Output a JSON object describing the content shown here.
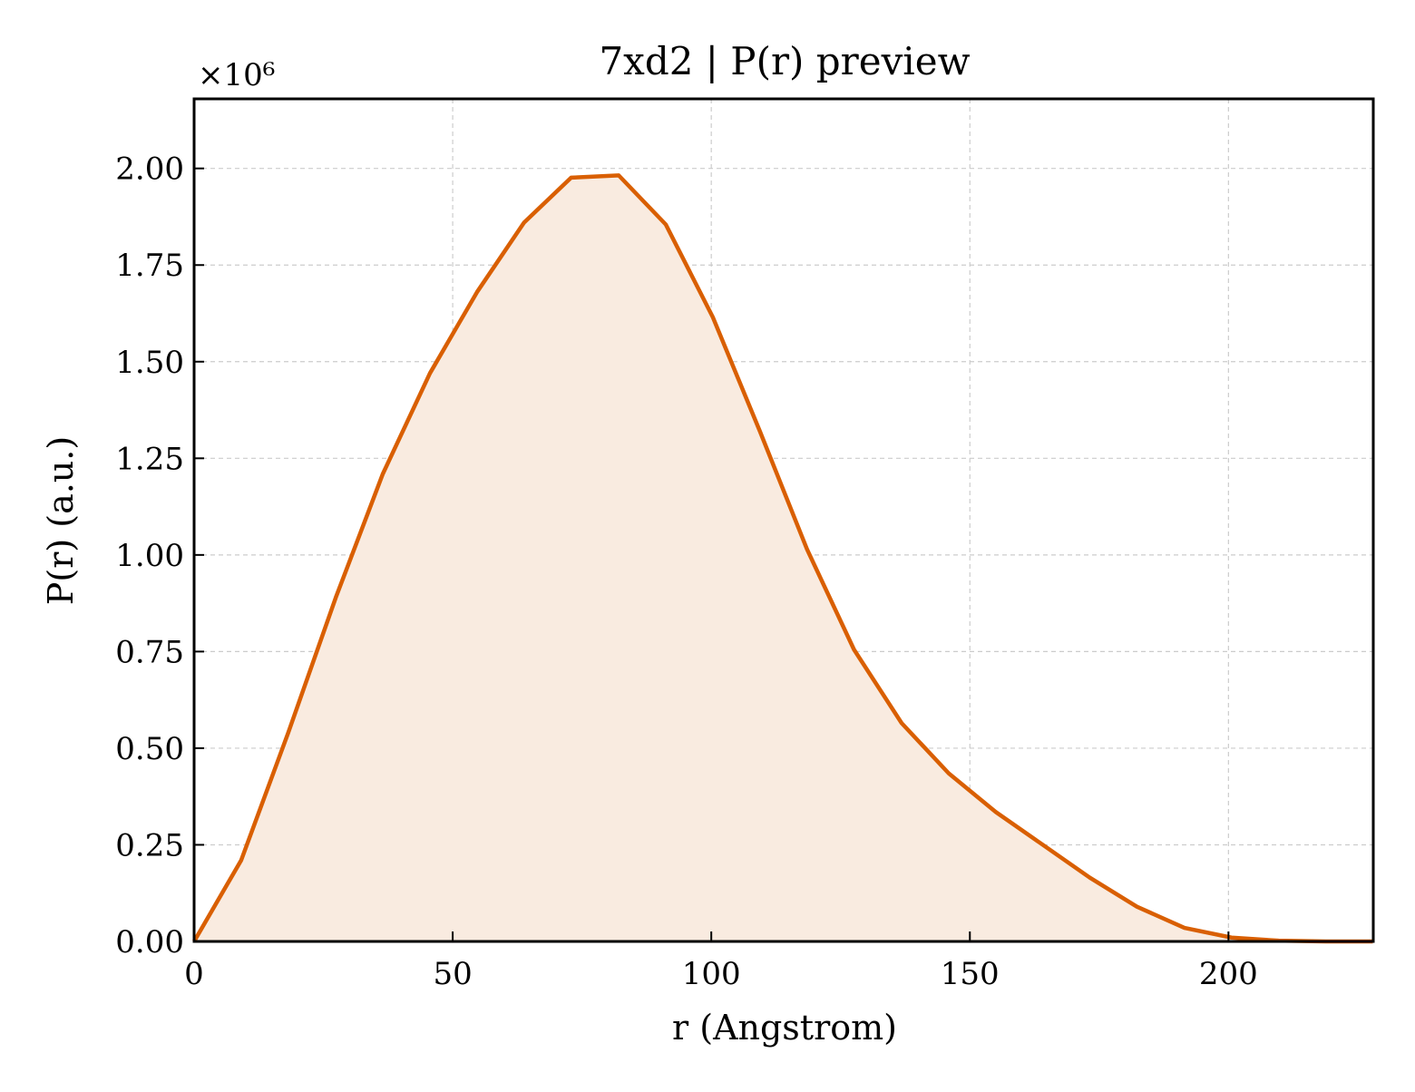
{
  "chart_data": {
    "type": "area",
    "title": "7xd2 | P(r) preview",
    "xlabel": "r (Angstrom)",
    "ylabel": "P(r) (a.u.)",
    "y_offset_label": "×10⁶",
    "y_scale_factor": 1000000,
    "xlim": [
      0,
      228
    ],
    "ylim": [
      0,
      2.18
    ],
    "x_ticks": [
      0,
      50,
      100,
      150,
      200
    ],
    "x_tick_labels": [
      "0",
      "50",
      "100",
      "150",
      "200"
    ],
    "y_ticks": [
      0,
      0.25,
      0.5,
      0.75,
      1.0,
      1.25,
      1.5,
      1.75,
      2.0
    ],
    "y_tick_labels": [
      "0.00",
      "0.25",
      "0.50",
      "0.75",
      "1.00",
      "1.25",
      "1.50",
      "1.75",
      "2.00"
    ],
    "grid": true,
    "colors": {
      "line": "#d95f02",
      "fill": "#f9ebe0",
      "grid": "#cccccc",
      "axis": "#000000"
    },
    "series": [
      {
        "x": [
          0,
          9.1,
          18.2,
          27.4,
          36.5,
          45.6,
          54.7,
          63.8,
          72.9,
          82.1,
          91.2,
          100.3,
          109.4,
          118.5,
          127.6,
          136.8,
          145.9,
          155.0,
          164.1,
          173.2,
          182.3,
          191.5,
          200.6,
          209.7,
          218.8,
          227.9
        ],
        "y": [
          0.0,
          0.21,
          0.54,
          0.89,
          1.21,
          1.47,
          1.68,
          1.86,
          1.976,
          1.982,
          1.855,
          1.615,
          1.32,
          1.015,
          0.755,
          0.565,
          0.435,
          0.335,
          0.25,
          0.165,
          0.09,
          0.035,
          0.01,
          0.002,
          0.0,
          0.0
        ]
      }
    ]
  }
}
